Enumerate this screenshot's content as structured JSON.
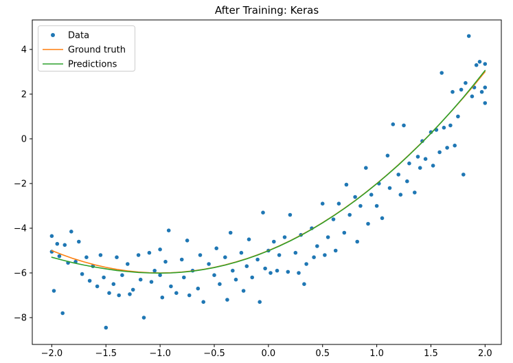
{
  "chart_data": {
    "type": "scatter",
    "title": "After Training: Keras",
    "xlabel": "",
    "ylabel": "",
    "background": "#ffffff",
    "xlim": [
      -2.18,
      2.15
    ],
    "ylim": [
      -9.2,
      5.32
    ],
    "grid": false,
    "legend_position": "upper left",
    "x_ticks": {
      "values": [
        -2.0,
        -1.5,
        -1.0,
        -0.5,
        0.0,
        0.5,
        1.0,
        1.5,
        2.0
      ],
      "labels": [
        "−2.0",
        "−1.5",
        "−1.0",
        "−0.5",
        "0.0",
        "0.5",
        "1.0",
        "1.5",
        "2.0"
      ]
    },
    "y_ticks": {
      "values": [
        -8,
        -6,
        -4,
        -2,
        0,
        2,
        4
      ],
      "labels": [
        "−8",
        "−6",
        "−4",
        "−2",
        "0",
        "2",
        "4"
      ]
    },
    "legend": [
      {
        "label": "Data",
        "marker": "point",
        "color": "#1f77b4"
      },
      {
        "label": "Ground truth",
        "marker": "line",
        "color": "#ff7f0e"
      },
      {
        "label": "Predictions",
        "marker": "line",
        "color": "#2ca02c"
      }
    ],
    "scatter": {
      "name": "Data",
      "color": "#1f77b4",
      "marker_radius": 2.8,
      "points": [
        [
          -2.0,
          -4.35
        ],
        [
          -2.0,
          -5.05
        ],
        [
          -1.98,
          -6.8
        ],
        [
          -1.95,
          -4.7
        ],
        [
          -1.93,
          -5.25
        ],
        [
          -1.9,
          -7.8
        ],
        [
          -1.88,
          -4.75
        ],
        [
          -1.85,
          -5.55
        ],
        [
          -1.82,
          -4.15
        ],
        [
          -1.78,
          -5.5
        ],
        [
          -1.75,
          -4.6
        ],
        [
          -1.72,
          -6.05
        ],
        [
          -1.68,
          -5.3
        ],
        [
          -1.65,
          -6.35
        ],
        [
          -1.62,
          -5.7
        ],
        [
          -1.58,
          -6.6
        ],
        [
          -1.55,
          -5.2
        ],
        [
          -1.52,
          -6.2
        ],
        [
          -1.5,
          -8.45
        ],
        [
          -1.47,
          -6.9
        ],
        [
          -1.43,
          -6.5
        ],
        [
          -1.4,
          -5.3
        ],
        [
          -1.38,
          -7.0
        ],
        [
          -1.35,
          -6.1
        ],
        [
          -1.3,
          -5.6
        ],
        [
          -1.28,
          -6.95
        ],
        [
          -1.25,
          -6.75
        ],
        [
          -1.2,
          -5.2
        ],
        [
          -1.18,
          -6.3
        ],
        [
          -1.15,
          -8.0
        ],
        [
          -1.1,
          -5.1
        ],
        [
          -1.08,
          -6.4
        ],
        [
          -1.05,
          -5.9
        ],
        [
          -1.0,
          -4.95
        ],
        [
          -1.0,
          -6.1
        ],
        [
          -0.98,
          -7.1
        ],
        [
          -0.95,
          -5.5
        ],
        [
          -0.92,
          -4.1
        ],
        [
          -0.9,
          -6.6
        ],
        [
          -0.85,
          -6.9
        ],
        [
          -0.8,
          -5.4
        ],
        [
          -0.78,
          -6.2
        ],
        [
          -0.75,
          -4.55
        ],
        [
          -0.73,
          -7.0
        ],
        [
          -0.7,
          -5.9
        ],
        [
          -0.65,
          -6.7
        ],
        [
          -0.63,
          -5.2
        ],
        [
          -0.6,
          -7.3
        ],
        [
          -0.55,
          -5.6
        ],
        [
          -0.5,
          -6.1
        ],
        [
          -0.48,
          -4.9
        ],
        [
          -0.45,
          -6.5
        ],
        [
          -0.4,
          -5.3
        ],
        [
          -0.38,
          -7.2
        ],
        [
          -0.35,
          -4.2
        ],
        [
          -0.33,
          -5.9
        ],
        [
          -0.3,
          -6.3
        ],
        [
          -0.25,
          -5.1
        ],
        [
          -0.23,
          -6.8
        ],
        [
          -0.2,
          -5.7
        ],
        [
          -0.18,
          -4.5
        ],
        [
          -0.15,
          -6.2
        ],
        [
          -0.1,
          -5.4
        ],
        [
          -0.08,
          -7.3
        ],
        [
          -0.05,
          -3.3
        ],
        [
          -0.03,
          -5.8
        ],
        [
          0.0,
          -5.0
        ],
        [
          0.02,
          -6.0
        ],
        [
          0.05,
          -4.6
        ],
        [
          0.08,
          -5.9
        ],
        [
          0.1,
          -5.2
        ],
        [
          0.15,
          -4.4
        ],
        [
          0.18,
          -5.95
        ],
        [
          0.2,
          -3.4
        ],
        [
          0.25,
          -5.1
        ],
        [
          0.28,
          -6.0
        ],
        [
          0.3,
          -4.3
        ],
        [
          0.33,
          -6.5
        ],
        [
          0.35,
          -5.6
        ],
        [
          0.4,
          -4.0
        ],
        [
          0.42,
          -5.3
        ],
        [
          0.45,
          -4.8
        ],
        [
          0.5,
          -2.9
        ],
        [
          0.52,
          -5.2
        ],
        [
          0.55,
          -4.4
        ],
        [
          0.6,
          -3.6
        ],
        [
          0.62,
          -5.0
        ],
        [
          0.65,
          -2.9
        ],
        [
          0.7,
          -4.2
        ],
        [
          0.72,
          -2.05
        ],
        [
          0.75,
          -3.4
        ],
        [
          0.8,
          -2.6
        ],
        [
          0.82,
          -4.6
        ],
        [
          0.85,
          -3.0
        ],
        [
          0.9,
          -1.3
        ],
        [
          0.92,
          -3.8
        ],
        [
          0.95,
          -2.5
        ],
        [
          1.0,
          -3.0
        ],
        [
          1.02,
          -2.0
        ],
        [
          1.05,
          -3.55
        ],
        [
          1.1,
          -0.75
        ],
        [
          1.12,
          -2.2
        ],
        [
          1.15,
          0.65
        ],
        [
          1.2,
          -1.6
        ],
        [
          1.22,
          -2.5
        ],
        [
          1.25,
          0.6
        ],
        [
          1.28,
          -1.9
        ],
        [
          1.3,
          -1.1
        ],
        [
          1.35,
          -2.4
        ],
        [
          1.38,
          -0.8
        ],
        [
          1.4,
          -1.3
        ],
        [
          1.42,
          -0.1
        ],
        [
          1.45,
          -0.9
        ],
        [
          1.5,
          0.3
        ],
        [
          1.52,
          -1.2
        ],
        [
          1.55,
          0.4
        ],
        [
          1.58,
          -0.6
        ],
        [
          1.6,
          2.95
        ],
        [
          1.62,
          0.5
        ],
        [
          1.65,
          -0.4
        ],
        [
          1.68,
          0.6
        ],
        [
          1.7,
          2.1
        ],
        [
          1.72,
          -0.3
        ],
        [
          1.75,
          1.0
        ],
        [
          1.78,
          2.2
        ],
        [
          1.8,
          -1.6
        ],
        [
          1.82,
          2.5
        ],
        [
          1.85,
          4.6
        ],
        [
          1.88,
          1.9
        ],
        [
          1.9,
          2.3
        ],
        [
          1.92,
          3.3
        ],
        [
          1.95,
          3.45
        ],
        [
          1.97,
          2.1
        ],
        [
          2.0,
          3.35
        ],
        [
          2.0,
          2.3
        ],
        [
          2.0,
          1.6
        ]
      ]
    },
    "lines": [
      {
        "name": "Ground truth",
        "color": "#ff7f0e",
        "width": 1.6,
        "points": [
          [
            -2.0,
            -5.0
          ],
          [
            -1.9,
            -5.19
          ],
          [
            -1.8,
            -5.36
          ],
          [
            -1.7,
            -5.51
          ],
          [
            -1.6,
            -5.64
          ],
          [
            -1.5,
            -5.75
          ],
          [
            -1.4,
            -5.84
          ],
          [
            -1.3,
            -5.91
          ],
          [
            -1.2,
            -5.96
          ],
          [
            -1.1,
            -5.99
          ],
          [
            -1.0,
            -6.0
          ],
          [
            -0.9,
            -5.99
          ],
          [
            -0.8,
            -5.96
          ],
          [
            -0.7,
            -5.91
          ],
          [
            -0.6,
            -5.84
          ],
          [
            -0.5,
            -5.75
          ],
          [
            -0.4,
            -5.64
          ],
          [
            -0.3,
            -5.51
          ],
          [
            -0.2,
            -5.36
          ],
          [
            -0.1,
            -5.19
          ],
          [
            0.0,
            -5.0
          ],
          [
            0.1,
            -4.79
          ],
          [
            0.2,
            -4.56
          ],
          [
            0.3,
            -4.31
          ],
          [
            0.4,
            -4.04
          ],
          [
            0.5,
            -3.75
          ],
          [
            0.6,
            -3.44
          ],
          [
            0.7,
            -3.11
          ],
          [
            0.8,
            -2.76
          ],
          [
            0.9,
            -2.39
          ],
          [
            1.0,
            -2.0
          ],
          [
            1.1,
            -1.59
          ],
          [
            1.2,
            -1.16
          ],
          [
            1.3,
            -0.71
          ],
          [
            1.4,
            -0.24
          ],
          [
            1.5,
            0.25
          ],
          [
            1.6,
            0.76
          ],
          [
            1.7,
            1.29
          ],
          [
            1.8,
            1.84
          ],
          [
            1.9,
            2.41
          ],
          [
            2.0,
            3.0
          ]
        ]
      },
      {
        "name": "Predictions",
        "color": "#2ca02c",
        "width": 1.6,
        "points": [
          [
            -2.0,
            -5.3
          ],
          [
            -1.9,
            -5.43
          ],
          [
            -1.8,
            -5.55
          ],
          [
            -1.7,
            -5.65
          ],
          [
            -1.6,
            -5.74
          ],
          [
            -1.5,
            -5.82
          ],
          [
            -1.4,
            -5.89
          ],
          [
            -1.3,
            -5.94
          ],
          [
            -1.2,
            -5.98
          ],
          [
            -1.1,
            -6.0
          ],
          [
            -1.0,
            -6.01
          ],
          [
            -0.9,
            -6.0
          ],
          [
            -0.8,
            -5.97
          ],
          [
            -0.7,
            -5.92
          ],
          [
            -0.6,
            -5.85
          ],
          [
            -0.5,
            -5.76
          ],
          [
            -0.4,
            -5.65
          ],
          [
            -0.3,
            -5.52
          ],
          [
            -0.2,
            -5.37
          ],
          [
            -0.1,
            -5.2
          ],
          [
            0.0,
            -5.01
          ],
          [
            0.1,
            -4.8
          ],
          [
            0.2,
            -4.57
          ],
          [
            0.3,
            -4.32
          ],
          [
            0.4,
            -4.05
          ],
          [
            0.5,
            -3.76
          ],
          [
            0.6,
            -3.45
          ],
          [
            0.7,
            -3.12
          ],
          [
            0.8,
            -2.77
          ],
          [
            0.9,
            -2.4
          ],
          [
            1.0,
            -2.01
          ],
          [
            1.1,
            -1.6
          ],
          [
            1.2,
            -1.17
          ],
          [
            1.3,
            -0.72
          ],
          [
            1.4,
            -0.25
          ],
          [
            1.5,
            0.24
          ],
          [
            1.6,
            0.76
          ],
          [
            1.7,
            1.3
          ],
          [
            1.8,
            1.86
          ],
          [
            1.9,
            2.45
          ],
          [
            2.0,
            3.06
          ]
        ]
      }
    ]
  }
}
